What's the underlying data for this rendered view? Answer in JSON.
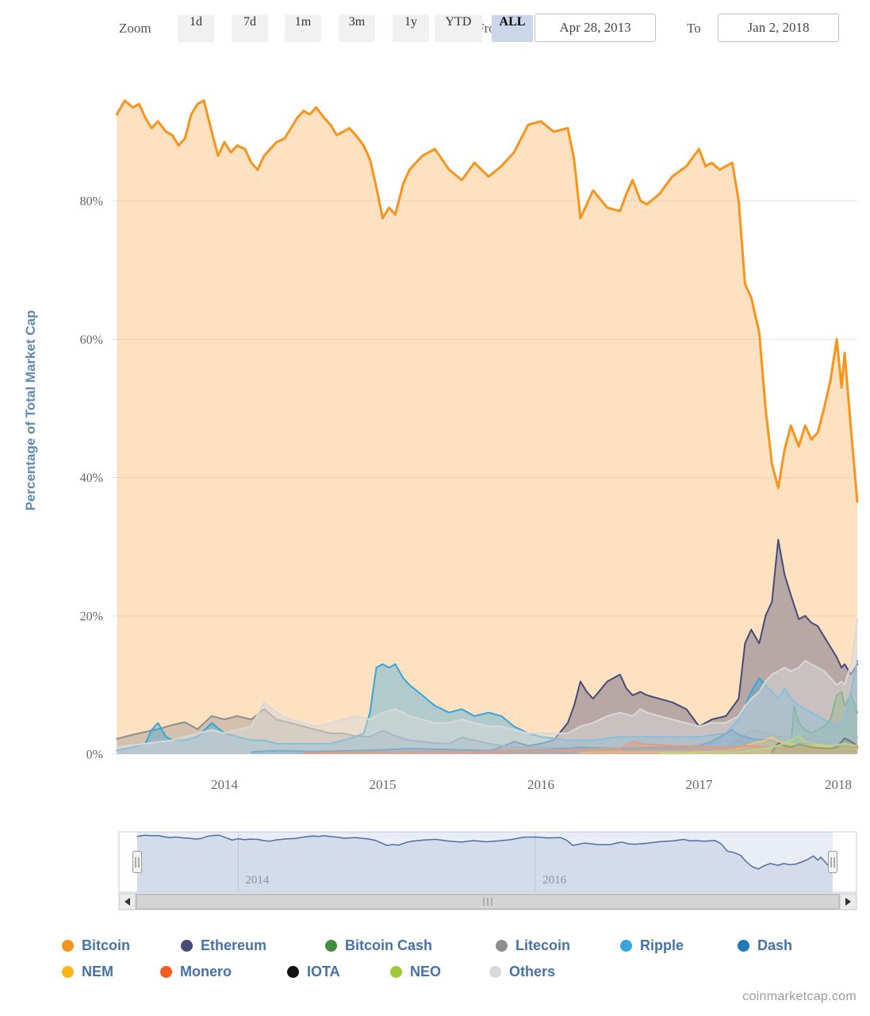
{
  "toolbar": {
    "zoom_label": "Zoom",
    "buttons": [
      "1d",
      "7d",
      "1m",
      "3m",
      "1y",
      "YTD",
      "ALL"
    ],
    "selected": "ALL",
    "from_label": "From",
    "from_value": "Apr 28, 2013",
    "to_label": "To",
    "to_value": "Jan 2, 2018"
  },
  "chart_data": {
    "type": "area",
    "title": "",
    "ylabel": "Percentage of Total Market Cap",
    "xlabel": "",
    "ylim": [
      0,
      100
    ],
    "yticks": [
      "0%",
      "20%",
      "40%",
      "60%",
      "80%"
    ],
    "xticks": [
      "2014",
      "2015",
      "2016",
      "2017",
      "2018"
    ],
    "x_range": [
      "Apr 28, 2013",
      "Jan 2, 2018"
    ],
    "grid": "horizontal",
    "legend_position": "bottom",
    "series": [
      {
        "name": "Bitcoin",
        "color": "#f7941d",
        "x": [
          2013.32,
          2013.37,
          2013.42,
          2013.46,
          2013.5,
          2013.54,
          2013.58,
          2013.63,
          2013.67,
          2013.71,
          2013.75,
          2013.79,
          2013.83,
          2013.87,
          2013.92,
          2013.96,
          2014.0,
          2014.04,
          2014.08,
          2014.13,
          2014.17,
          2014.21,
          2014.25,
          2014.29,
          2014.33,
          2014.38,
          2014.42,
          2014.46,
          2014.5,
          2014.54,
          2014.58,
          2014.63,
          2014.67,
          2014.71,
          2014.75,
          2014.79,
          2014.83,
          2014.88,
          2014.92,
          2014.96,
          2015.0,
          2015.04,
          2015.08,
          2015.13,
          2015.17,
          2015.25,
          2015.33,
          2015.42,
          2015.5,
          2015.58,
          2015.67,
          2015.75,
          2015.83,
          2015.92,
          2016.0,
          2016.08,
          2016.17,
          2016.21,
          2016.25,
          2016.29,
          2016.33,
          2016.42,
          2016.5,
          2016.54,
          2016.58,
          2016.63,
          2016.67,
          2016.75,
          2016.83,
          2016.92,
          2017.0,
          2017.04,
          2017.08,
          2017.13,
          2017.17,
          2017.21,
          2017.25,
          2017.29,
          2017.33,
          2017.38,
          2017.42,
          2017.46,
          2017.5,
          2017.54,
          2017.58,
          2017.63,
          2017.67,
          2017.71,
          2017.75,
          2017.79,
          2017.83,
          2017.87,
          2017.9,
          2017.92,
          2017.96,
          2018.0
        ],
        "values": [
          92.5,
          94.5,
          93.5,
          94,
          92,
          90.5,
          91.5,
          90,
          89.5,
          88,
          89,
          92.5,
          94,
          94.5,
          90,
          86.5,
          88.5,
          87,
          88,
          87.5,
          85.5,
          84.5,
          86.5,
          87.5,
          88.5,
          89,
          90.5,
          92,
          93,
          92.5,
          93.5,
          92,
          91,
          89.5,
          90,
          90.5,
          89.5,
          88,
          86,
          82,
          77.5,
          79,
          78,
          82.5,
          84.5,
          86.5,
          87.5,
          84.5,
          83,
          85.5,
          83.5,
          85,
          87,
          91,
          91.5,
          90,
          90.5,
          86,
          77.5,
          79.5,
          81.5,
          79,
          78.5,
          81,
          83,
          80,
          79.5,
          81,
          83.5,
          85,
          87.5,
          85,
          85.5,
          84.5,
          85,
          85.5,
          80,
          68,
          66,
          61,
          50,
          42,
          38.5,
          44,
          47.5,
          44.5,
          47.5,
          45.5,
          46.5,
          50,
          54,
          60,
          53,
          58,
          47,
          36.5
        ]
      },
      {
        "name": "Ethereum",
        "color": "#474b78",
        "x": [
          2015.58,
          2015.67,
          2015.75,
          2015.83,
          2015.92,
          2016.0,
          2016.08,
          2016.17,
          2016.21,
          2016.25,
          2016.29,
          2016.33,
          2016.42,
          2016.5,
          2016.54,
          2016.58,
          2016.63,
          2016.67,
          2016.75,
          2016.83,
          2016.92,
          2017.0,
          2017.08,
          2017.17,
          2017.25,
          2017.29,
          2017.33,
          2017.38,
          2017.42,
          2017.46,
          2017.5,
          2017.54,
          2017.58,
          2017.63,
          2017.67,
          2017.71,
          2017.75,
          2017.79,
          2017.83,
          2017.87,
          2017.9,
          2017.92,
          2017.96,
          2018.0
        ],
        "values": [
          0.2,
          0.5,
          1,
          1.8,
          1.2,
          1.5,
          2,
          4.5,
          7,
          10.5,
          9,
          8,
          10.5,
          11.5,
          9.5,
          8.5,
          9,
          8.5,
          8,
          7.5,
          6.5,
          4,
          5,
          5.5,
          8,
          16,
          18,
          16,
          20,
          22,
          31,
          26,
          23,
          19.5,
          20,
          19,
          18.5,
          17,
          15.5,
          14,
          12.5,
          13,
          11.5,
          13
        ]
      },
      {
        "name": "Bitcoin Cash",
        "color": "#3e8e3e",
        "x": [
          2017.58,
          2017.6,
          2017.63,
          2017.67,
          2017.71,
          2017.75,
          2017.79,
          2017.83,
          2017.87,
          2017.9,
          2017.92,
          2017.96,
          2018.0
        ],
        "values": [
          0.5,
          7,
          4.5,
          3.5,
          3,
          3.5,
          4,
          5,
          8.5,
          9,
          7,
          8.5,
          6
        ]
      },
      {
        "name": "Litecoin",
        "color": "#8e8e8e",
        "x": [
          2013.32,
          2013.42,
          2013.5,
          2013.58,
          2013.67,
          2013.75,
          2013.83,
          2013.92,
          2014.0,
          2014.08,
          2014.17,
          2014.25,
          2014.33,
          2014.42,
          2014.5,
          2014.58,
          2014.67,
          2014.75,
          2014.83,
          2014.92,
          2015.0,
          2015.08,
          2015.17,
          2015.25,
          2015.33,
          2015.42,
          2015.5,
          2015.58,
          2015.67,
          2015.75,
          2015.83,
          2015.92,
          2016.0,
          2016.17,
          2016.33,
          2016.5,
          2016.67,
          2016.83,
          2017.0,
          2017.17,
          2017.25,
          2017.33,
          2017.42,
          2017.5,
          2017.58,
          2017.67,
          2017.75,
          2017.83,
          2017.92,
          2018.0
        ],
        "values": [
          2.2,
          2.8,
          3.2,
          3.6,
          4.2,
          4.6,
          3.6,
          5.5,
          5,
          5.5,
          5,
          6.5,
          5,
          4.5,
          4,
          3.5,
          3,
          3,
          2.6,
          2.5,
          3.4,
          2.6,
          2,
          1.8,
          1.6,
          1.5,
          2.4,
          2,
          1.5,
          1.2,
          1,
          1,
          1,
          0.9,
          0.9,
          0.8,
          0.8,
          0.8,
          0.9,
          1,
          2,
          3.5,
          3,
          2.5,
          2.5,
          2.2,
          2,
          1.8,
          2,
          2.4
        ]
      },
      {
        "name": "Ripple",
        "color": "#35a5dc",
        "x": [
          2013.32,
          2013.42,
          2013.5,
          2013.54,
          2013.58,
          2013.63,
          2013.67,
          2013.75,
          2013.83,
          2013.92,
          2014.0,
          2014.08,
          2014.17,
          2014.25,
          2014.33,
          2014.42,
          2014.5,
          2014.58,
          2014.67,
          2014.75,
          2014.83,
          2014.88,
          2014.92,
          2014.96,
          2015.0,
          2015.04,
          2015.08,
          2015.13,
          2015.17,
          2015.25,
          2015.33,
          2015.42,
          2015.5,
          2015.58,
          2015.67,
          2015.75,
          2015.83,
          2015.92,
          2016.0,
          2016.17,
          2016.33,
          2016.5,
          2016.67,
          2016.83,
          2017.0,
          2017.17,
          2017.25,
          2017.29,
          2017.33,
          2017.38,
          2017.42,
          2017.46,
          2017.5,
          2017.54,
          2017.58,
          2017.63,
          2017.67,
          2017.71,
          2017.75,
          2017.79,
          2017.83,
          2017.87,
          2017.9,
          2017.92,
          2017.96,
          2018.0
        ],
        "values": [
          0.5,
          1,
          1.5,
          3.5,
          4.5,
          2.5,
          2,
          2,
          2.5,
          4.5,
          3,
          2.5,
          2,
          2,
          1.5,
          1.5,
          1.5,
          1.5,
          1.5,
          2,
          2.5,
          3,
          6,
          12.5,
          13,
          12.5,
          13,
          11,
          10,
          8.5,
          7,
          6,
          6.5,
          5.5,
          6,
          5.5,
          4,
          3,
          2.5,
          2,
          2,
          2.5,
          2.5,
          2.5,
          2.5,
          3,
          5,
          7,
          9,
          11,
          10,
          9,
          8,
          9.5,
          8,
          7,
          6.5,
          6,
          5.5,
          5,
          4.5,
          4,
          4.5,
          5,
          9,
          13.5
        ]
      },
      {
        "name": "Dash",
        "color": "#1e7ab8",
        "x": [
          2014.17,
          2014.33,
          2014.5,
          2014.67,
          2014.83,
          2015.0,
          2015.17,
          2015.33,
          2015.5,
          2015.67,
          2015.83,
          2016.0,
          2016.17,
          2016.25,
          2016.33,
          2016.5,
          2016.67,
          2016.83,
          2017.0,
          2017.08,
          2017.17,
          2017.21,
          2017.25,
          2017.33,
          2017.42,
          2017.5,
          2017.58,
          2017.67,
          2017.75,
          2017.83,
          2017.92,
          2018.0
        ],
        "values": [
          0.3,
          0.5,
          0.4,
          0.4,
          0.5,
          0.6,
          0.8,
          0.7,
          0.6,
          0.5,
          0.5,
          0.6,
          0.8,
          1,
          0.9,
          0.8,
          0.9,
          1,
          1.2,
          1.8,
          3,
          3.5,
          2.8,
          2.2,
          2,
          1.8,
          1.5,
          1.5,
          1.3,
          1.2,
          1,
          0.8
        ]
      },
      {
        "name": "NEM",
        "color": "#fdb515",
        "x": [
          2016.25,
          2016.42,
          2016.58,
          2016.75,
          2016.92,
          2017.08,
          2017.17,
          2017.25,
          2017.33,
          2017.42,
          2017.46,
          2017.5,
          2017.58,
          2017.67,
          2017.75,
          2017.83,
          2017.92,
          2018.0
        ],
        "values": [
          0.2,
          0.3,
          0.3,
          0.3,
          0.3,
          0.4,
          0.5,
          0.8,
          1.5,
          2,
          2.5,
          1.8,
          1.5,
          1.3,
          1.2,
          1,
          0.9,
          0.8
        ]
      },
      {
        "name": "Monero",
        "color": "#f45c20",
        "x": [
          2014.5,
          2014.67,
          2014.83,
          2015.0,
          2015.17,
          2015.33,
          2015.5,
          2015.67,
          2015.83,
          2016.0,
          2016.17,
          2016.33,
          2016.5,
          2016.58,
          2016.67,
          2016.83,
          2017.0,
          2017.17,
          2017.33,
          2017.5,
          2017.67,
          2017.83,
          2017.92,
          2018.0
        ],
        "values": [
          0.1,
          0.2,
          0.2,
          0.3,
          0.3,
          0.4,
          0.3,
          0.4,
          0.5,
          0.5,
          0.6,
          0.7,
          0.8,
          1.8,
          1.4,
          1.2,
          1.1,
          1,
          1.2,
          0.9,
          0.8,
          0.8,
          1,
          1
        ]
      },
      {
        "name": "IOTA",
        "color": "#111111",
        "x": [
          2017.46,
          2017.5,
          2017.54,
          2017.58,
          2017.63,
          2017.67,
          2017.75,
          2017.83,
          2017.87,
          2017.92,
          2017.96,
          2018.0
        ],
        "values": [
          0.3,
          1.6,
          1.2,
          1,
          1.4,
          1.2,
          0.9,
          0.8,
          1,
          2.3,
          1.8,
          1.2
        ]
      },
      {
        "name": "NEO",
        "color": "#9bcb3c",
        "x": [
          2016.75,
          2016.92,
          2017.08,
          2017.25,
          2017.42,
          2017.5,
          2017.58,
          2017.63,
          2017.67,
          2017.75,
          2017.83,
          2017.92,
          2018.0
        ],
        "values": [
          0.1,
          0.1,
          0.2,
          0.3,
          0.8,
          1.2,
          2,
          2.6,
          1.8,
          1.4,
          1.2,
          1.5,
          1.2
        ]
      },
      {
        "name": "Others",
        "color": "#d9d9d9",
        "x": [
          2013.32,
          2013.5,
          2013.67,
          2013.75,
          2013.92,
          2014.0,
          2014.08,
          2014.17,
          2014.25,
          2014.33,
          2014.42,
          2014.5,
          2014.58,
          2014.67,
          2014.75,
          2014.83,
          2014.92,
          2015.0,
          2015.08,
          2015.13,
          2015.17,
          2015.25,
          2015.33,
          2015.42,
          2015.5,
          2015.58,
          2015.67,
          2015.75,
          2015.83,
          2015.92,
          2016.0,
          2016.08,
          2016.17,
          2016.25,
          2016.33,
          2016.42,
          2016.5,
          2016.58,
          2016.63,
          2016.67,
          2016.75,
          2016.83,
          2016.92,
          2017.0,
          2017.08,
          2017.17,
          2017.25,
          2017.29,
          2017.33,
          2017.38,
          2017.42,
          2017.46,
          2017.5,
          2017.54,
          2017.58,
          2017.63,
          2017.67,
          2017.71,
          2017.75,
          2017.79,
          2017.83,
          2017.87,
          2017.9,
          2017.92,
          2017.96,
          2018.0
        ],
        "values": [
          1,
          1.5,
          2,
          2.5,
          3.5,
          3,
          3.5,
          4,
          7.5,
          6,
          5,
          4.5,
          4,
          4.5,
          5,
          5.5,
          5,
          6,
          6.5,
          6,
          5.5,
          5,
          4.5,
          4.5,
          5,
          4.5,
          4,
          4,
          3.5,
          3,
          3,
          3,
          3,
          4,
          4.5,
          5.5,
          6,
          5.5,
          6.5,
          6,
          5.5,
          5,
          4.5,
          4,
          4.5,
          4.5,
          5.5,
          7,
          8,
          9,
          10.5,
          11.5,
          12,
          12.5,
          12,
          12.5,
          13.5,
          13,
          12.5,
          12,
          11,
          10,
          10.5,
          10,
          13,
          19.5
        ]
      }
    ]
  },
  "navigator": {
    "labels": [
      "2014",
      "2016"
    ]
  },
  "footer": {
    "watermark": "coinmarketcap.com"
  }
}
